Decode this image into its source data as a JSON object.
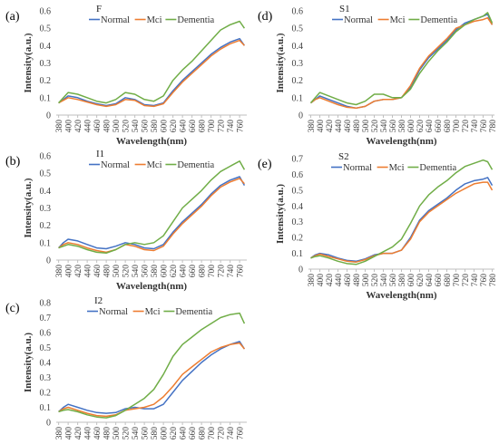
{
  "figure": {
    "colors": {
      "normal": "#4472C4",
      "mci": "#ED7D31",
      "dementia": "#70AD47"
    },
    "legend_labels": [
      "Normal",
      "Mci",
      "Dementia"
    ]
  },
  "chart_data": [
    {
      "type": "line",
      "panel_label": "(a)",
      "title": "F",
      "xlabel": "Wavelength(nm)",
      "ylabel": "Intensity(a.u.)",
      "xlim": [
        375,
        775
      ],
      "ylim": [
        0,
        0.6
      ],
      "x_ticks": [
        380,
        400,
        420,
        440,
        460,
        480,
        500,
        520,
        540,
        560,
        580,
        600,
        620,
        640,
        660,
        680,
        700,
        720,
        740,
        760
      ],
      "y_ticks": [
        0,
        0.1,
        0.2,
        0.3,
        0.4,
        0.5,
        0.6
      ],
      "y_tick_labels": [
        "0",
        "0.1",
        "0.2",
        "0.3",
        "0.4",
        "0.5",
        "0.6"
      ],
      "legend": "top-left",
      "grid": false,
      "series": [
        {
          "name": "Normal",
          "color": "#4472C4",
          "x": [
            380,
            390,
            400,
            420,
            440,
            460,
            480,
            500,
            520,
            540,
            560,
            580,
            600,
            620,
            640,
            660,
            680,
            700,
            720,
            740,
            760,
            770
          ],
          "values": [
            0.07,
            0.09,
            0.11,
            0.1,
            0.08,
            0.065,
            0.055,
            0.065,
            0.1,
            0.09,
            0.06,
            0.055,
            0.07,
            0.14,
            0.2,
            0.25,
            0.3,
            0.35,
            0.39,
            0.42,
            0.44,
            0.4
          ]
        },
        {
          "name": "Mci",
          "color": "#ED7D31",
          "x": [
            380,
            390,
            400,
            420,
            440,
            460,
            480,
            500,
            520,
            540,
            560,
            580,
            600,
            620,
            640,
            660,
            680,
            700,
            720,
            740,
            760,
            770
          ],
          "values": [
            0.07,
            0.085,
            0.1,
            0.09,
            0.075,
            0.06,
            0.05,
            0.06,
            0.09,
            0.085,
            0.055,
            0.05,
            0.065,
            0.13,
            0.19,
            0.24,
            0.29,
            0.34,
            0.38,
            0.41,
            0.43,
            0.4
          ]
        },
        {
          "name": "Dementia",
          "color": "#70AD47",
          "x": [
            380,
            390,
            400,
            420,
            440,
            460,
            480,
            500,
            520,
            540,
            560,
            580,
            600,
            620,
            640,
            660,
            680,
            700,
            720,
            740,
            760,
            770
          ],
          "values": [
            0.07,
            0.1,
            0.13,
            0.12,
            0.1,
            0.08,
            0.07,
            0.09,
            0.13,
            0.12,
            0.09,
            0.08,
            0.11,
            0.2,
            0.26,
            0.31,
            0.37,
            0.43,
            0.49,
            0.52,
            0.54,
            0.5
          ]
        }
      ]
    },
    {
      "type": "line",
      "panel_label": "(b)",
      "title": "I1",
      "xlabel": "Wavelength(nm)",
      "ylabel": "Intensity(a.u.)",
      "xlim": [
        375,
        775
      ],
      "ylim": [
        0,
        0.6
      ],
      "x_ticks": [
        380,
        400,
        420,
        440,
        460,
        480,
        500,
        520,
        540,
        560,
        580,
        600,
        620,
        640,
        660,
        680,
        700,
        720,
        740,
        760
      ],
      "y_ticks": [
        0,
        0.1,
        0.2,
        0.3,
        0.4,
        0.5,
        0.6
      ],
      "y_tick_labels": [
        "0",
        "0.1",
        "0.2",
        "0.3",
        "0.4",
        "0.5",
        "0.6"
      ],
      "legend": "top-left",
      "grid": false,
      "series": [
        {
          "name": "Normal",
          "color": "#4472C4",
          "x": [
            380,
            390,
            400,
            420,
            440,
            460,
            480,
            500,
            520,
            540,
            560,
            580,
            600,
            620,
            640,
            660,
            680,
            700,
            720,
            740,
            760,
            770
          ],
          "values": [
            0.07,
            0.1,
            0.12,
            0.11,
            0.09,
            0.07,
            0.065,
            0.08,
            0.1,
            0.09,
            0.07,
            0.065,
            0.09,
            0.16,
            0.22,
            0.27,
            0.32,
            0.38,
            0.43,
            0.46,
            0.48,
            0.43
          ]
        },
        {
          "name": "Mci",
          "color": "#ED7D31",
          "x": [
            380,
            390,
            400,
            420,
            440,
            460,
            480,
            500,
            520,
            540,
            560,
            580,
            600,
            620,
            640,
            660,
            680,
            700,
            720,
            740,
            760,
            770
          ],
          "values": [
            0.07,
            0.09,
            0.1,
            0.09,
            0.07,
            0.055,
            0.045,
            0.06,
            0.09,
            0.08,
            0.06,
            0.055,
            0.08,
            0.15,
            0.21,
            0.26,
            0.31,
            0.37,
            0.42,
            0.45,
            0.47,
            0.44
          ]
        },
        {
          "name": "Dementia",
          "color": "#70AD47",
          "x": [
            380,
            390,
            400,
            420,
            440,
            460,
            480,
            500,
            520,
            540,
            560,
            580,
            600,
            620,
            640,
            660,
            680,
            700,
            720,
            740,
            760,
            770
          ],
          "values": [
            0.07,
            0.08,
            0.09,
            0.08,
            0.06,
            0.045,
            0.04,
            0.06,
            0.09,
            0.1,
            0.09,
            0.1,
            0.14,
            0.22,
            0.3,
            0.35,
            0.4,
            0.46,
            0.51,
            0.54,
            0.57,
            0.52
          ]
        }
      ]
    },
    {
      "type": "line",
      "panel_label": "(c)",
      "title": "I2",
      "xlabel": "Wavelength(nm)",
      "ylabel": "Intensity(a.u.)",
      "xlim": [
        375,
        775
      ],
      "ylim": [
        0,
        0.8
      ],
      "x_ticks": [
        380,
        400,
        420,
        440,
        460,
        480,
        500,
        520,
        540,
        560,
        580,
        600,
        620,
        640,
        660,
        680,
        700,
        720,
        740,
        760
      ],
      "y_ticks": [
        0,
        0.1,
        0.2,
        0.3,
        0.4,
        0.5,
        0.6,
        0.7,
        0.8
      ],
      "y_tick_labels": [
        "0",
        "0.1",
        "0.2",
        "0.3",
        "0.4",
        "0.5",
        "0.6",
        "0.7",
        "0.8"
      ],
      "legend": "top-left",
      "grid": false,
      "series": [
        {
          "name": "Normal",
          "color": "#4472C4",
          "x": [
            380,
            390,
            400,
            420,
            440,
            460,
            480,
            500,
            520,
            540,
            560,
            580,
            600,
            620,
            640,
            660,
            680,
            700,
            720,
            740,
            760,
            770
          ],
          "values": [
            0.07,
            0.1,
            0.12,
            0.1,
            0.08,
            0.065,
            0.06,
            0.065,
            0.09,
            0.1,
            0.09,
            0.09,
            0.12,
            0.2,
            0.28,
            0.34,
            0.4,
            0.45,
            0.49,
            0.52,
            0.54,
            0.49
          ]
        },
        {
          "name": "Mci",
          "color": "#ED7D31",
          "x": [
            380,
            390,
            400,
            420,
            440,
            460,
            480,
            500,
            520,
            540,
            560,
            580,
            600,
            620,
            640,
            660,
            680,
            700,
            720,
            740,
            760,
            770
          ],
          "values": [
            0.07,
            0.09,
            0.1,
            0.08,
            0.06,
            0.045,
            0.04,
            0.05,
            0.08,
            0.09,
            0.1,
            0.12,
            0.17,
            0.24,
            0.32,
            0.37,
            0.42,
            0.47,
            0.5,
            0.52,
            0.53,
            0.49
          ]
        },
        {
          "name": "Dementia",
          "color": "#70AD47",
          "x": [
            380,
            390,
            400,
            420,
            440,
            460,
            480,
            500,
            520,
            540,
            560,
            580,
            600,
            620,
            640,
            660,
            680,
            700,
            720,
            740,
            760,
            770
          ],
          "values": [
            0.07,
            0.08,
            0.085,
            0.07,
            0.05,
            0.035,
            0.03,
            0.045,
            0.08,
            0.12,
            0.16,
            0.22,
            0.32,
            0.44,
            0.52,
            0.57,
            0.62,
            0.66,
            0.7,
            0.72,
            0.73,
            0.66
          ]
        }
      ]
    },
    {
      "type": "line",
      "panel_label": "(d)",
      "title": "S1",
      "xlabel": "Wavelength(nm)",
      "ylabel": "Intensity(a.u.)",
      "xlim": [
        375,
        785
      ],
      "ylim": [
        0,
        0.6
      ],
      "x_ticks": [
        380,
        400,
        420,
        440,
        460,
        480,
        500,
        520,
        540,
        560,
        580,
        600,
        620,
        640,
        660,
        680,
        700,
        720,
        740,
        760,
        780
      ],
      "y_ticks": [
        0,
        0.1,
        0.2,
        0.3,
        0.4,
        0.5,
        0.6
      ],
      "y_tick_labels": [
        "0",
        "0.1",
        "0.2",
        "0.3",
        "0.4",
        "0.5",
        "0.6"
      ],
      "legend": "top-left",
      "grid": false,
      "series": [
        {
          "name": "Normal",
          "color": "#4472C4",
          "x": [
            380,
            390,
            400,
            420,
            440,
            460,
            480,
            500,
            520,
            540,
            560,
            580,
            600,
            620,
            640,
            660,
            680,
            700,
            720,
            740,
            760,
            770,
            780
          ],
          "values": [
            0.07,
            0.09,
            0.11,
            0.09,
            0.07,
            0.05,
            0.04,
            0.05,
            0.08,
            0.09,
            0.09,
            0.1,
            0.16,
            0.26,
            0.33,
            0.38,
            0.43,
            0.49,
            0.53,
            0.55,
            0.57,
            0.58,
            0.52
          ]
        },
        {
          "name": "Mci",
          "color": "#ED7D31",
          "x": [
            380,
            390,
            400,
            420,
            440,
            460,
            480,
            500,
            520,
            540,
            560,
            580,
            600,
            620,
            640,
            660,
            680,
            700,
            720,
            740,
            760,
            770,
            780
          ],
          "values": [
            0.07,
            0.09,
            0.1,
            0.08,
            0.06,
            0.045,
            0.04,
            0.05,
            0.08,
            0.09,
            0.09,
            0.1,
            0.17,
            0.27,
            0.34,
            0.39,
            0.44,
            0.5,
            0.52,
            0.54,
            0.55,
            0.56,
            0.52
          ]
        },
        {
          "name": "Dementia",
          "color": "#70AD47",
          "x": [
            380,
            390,
            400,
            420,
            440,
            460,
            480,
            500,
            520,
            540,
            560,
            580,
            600,
            620,
            640,
            660,
            680,
            700,
            720,
            740,
            760,
            770,
            780
          ],
          "values": [
            0.07,
            0.1,
            0.13,
            0.11,
            0.09,
            0.07,
            0.06,
            0.08,
            0.12,
            0.12,
            0.1,
            0.1,
            0.15,
            0.24,
            0.31,
            0.37,
            0.42,
            0.48,
            0.52,
            0.55,
            0.57,
            0.59,
            0.53
          ]
        }
      ]
    },
    {
      "type": "line",
      "panel_label": "(e)",
      "title": "S2",
      "xlabel": "Wavelength(nm)",
      "ylabel": "Intensity(a.u.)",
      "xlim": [
        375,
        785
      ],
      "ylim": [
        0,
        0.7
      ],
      "x_ticks": [
        380,
        400,
        420,
        440,
        460,
        480,
        500,
        520,
        540,
        560,
        580,
        600,
        620,
        640,
        660,
        680,
        700,
        720,
        740,
        760,
        780
      ],
      "y_ticks": [
        0,
        0.1,
        0.2,
        0.3,
        0.4,
        0.5,
        0.6,
        0.7
      ],
      "y_tick_labels": [
        "0",
        "0.1",
        "0.2",
        "0.3",
        "0.4",
        "0.5",
        "0.6",
        "0.7"
      ],
      "legend": "top-left",
      "grid": false,
      "series": [
        {
          "name": "Normal",
          "color": "#4472C4",
          "x": [
            380,
            390,
            400,
            420,
            440,
            460,
            480,
            500,
            520,
            540,
            560,
            580,
            600,
            620,
            640,
            660,
            680,
            700,
            720,
            740,
            760,
            770,
            780
          ],
          "values": [
            0.07,
            0.09,
            0.1,
            0.09,
            0.07,
            0.055,
            0.05,
            0.065,
            0.09,
            0.1,
            0.1,
            0.12,
            0.2,
            0.31,
            0.37,
            0.41,
            0.45,
            0.5,
            0.54,
            0.56,
            0.57,
            0.58,
            0.53
          ]
        },
        {
          "name": "Mci",
          "color": "#ED7D31",
          "x": [
            380,
            390,
            400,
            420,
            440,
            460,
            480,
            500,
            520,
            540,
            560,
            580,
            600,
            620,
            640,
            660,
            680,
            700,
            720,
            740,
            760,
            770,
            780
          ],
          "values": [
            0.07,
            0.085,
            0.095,
            0.08,
            0.065,
            0.05,
            0.045,
            0.06,
            0.085,
            0.1,
            0.1,
            0.12,
            0.19,
            0.3,
            0.36,
            0.4,
            0.44,
            0.48,
            0.51,
            0.54,
            0.55,
            0.55,
            0.5
          ]
        },
        {
          "name": "Dementia",
          "color": "#70AD47",
          "x": [
            380,
            390,
            400,
            420,
            440,
            460,
            480,
            500,
            520,
            540,
            560,
            580,
            600,
            620,
            640,
            660,
            680,
            700,
            720,
            740,
            760,
            770,
            780
          ],
          "values": [
            0.07,
            0.08,
            0.085,
            0.07,
            0.05,
            0.035,
            0.03,
            0.05,
            0.08,
            0.11,
            0.14,
            0.19,
            0.29,
            0.4,
            0.47,
            0.52,
            0.56,
            0.61,
            0.65,
            0.67,
            0.69,
            0.68,
            0.63
          ]
        }
      ]
    }
  ]
}
